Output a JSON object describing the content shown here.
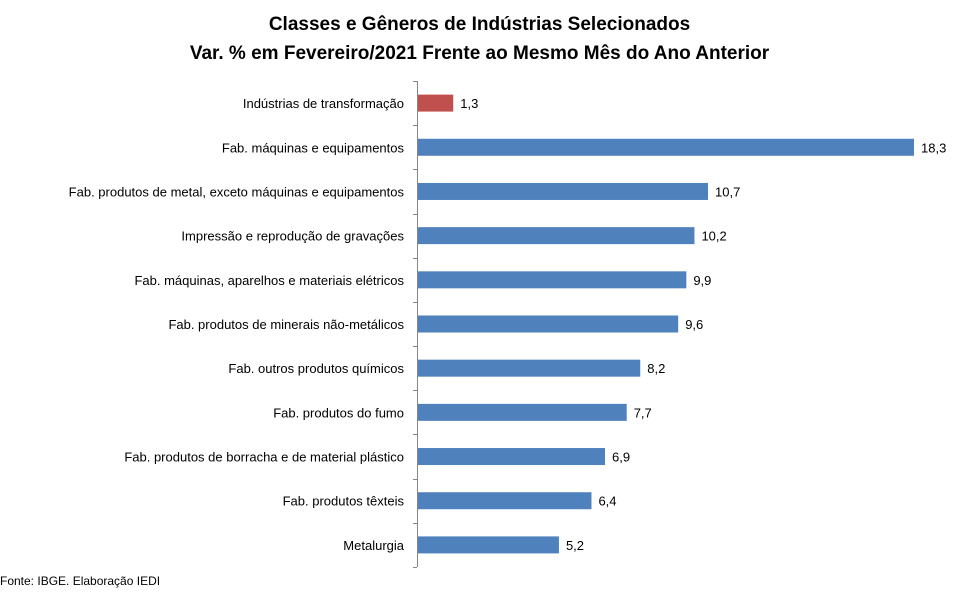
{
  "chart_data": {
    "type": "bar",
    "orientation": "horizontal",
    "title": "Classes e Gêneros de Indústrias Selecionados",
    "subtitle": "Var. % em Fevereiro/2021 Frente ao Mesmo Mês do Ano Anterior",
    "categories": [
      "Indústrias de transformação",
      "Fab. máquinas e equipamentos",
      "Fab. produtos de metal, exceto máquinas e equipamentos",
      "Impressão e reprodução de gravações",
      "Fab. máquinas, aparelhos e materiais elétricos",
      "Fab. produtos de minerais não-metálicos",
      "Fab. outros produtos químicos",
      "Fab. produtos do fumo",
      "Fab. produtos de borracha e de material plástico",
      "Fab. produtos têxteis",
      "Metalurgia"
    ],
    "values": [
      1.3,
      18.3,
      10.7,
      10.2,
      9.9,
      9.6,
      8.2,
      7.7,
      6.9,
      6.4,
      5.2
    ],
    "value_labels": [
      "1,3",
      "18,3",
      "10,7",
      "10,2",
      "9,9",
      "9,6",
      "8,2",
      "7,7",
      "6,9",
      "6,4",
      "5,2"
    ],
    "bar_colors": [
      "#C0504D",
      "#4F81BD",
      "#4F81BD",
      "#4F81BD",
      "#4F81BD",
      "#4F81BD",
      "#4F81BD",
      "#4F81BD",
      "#4F81BD",
      "#4F81BD",
      "#4F81BD"
    ],
    "xlim": [
      0,
      20
    ],
    "grid": false,
    "legend": "none"
  },
  "source": "Fonte: IBGE. Elaboração IEDI"
}
